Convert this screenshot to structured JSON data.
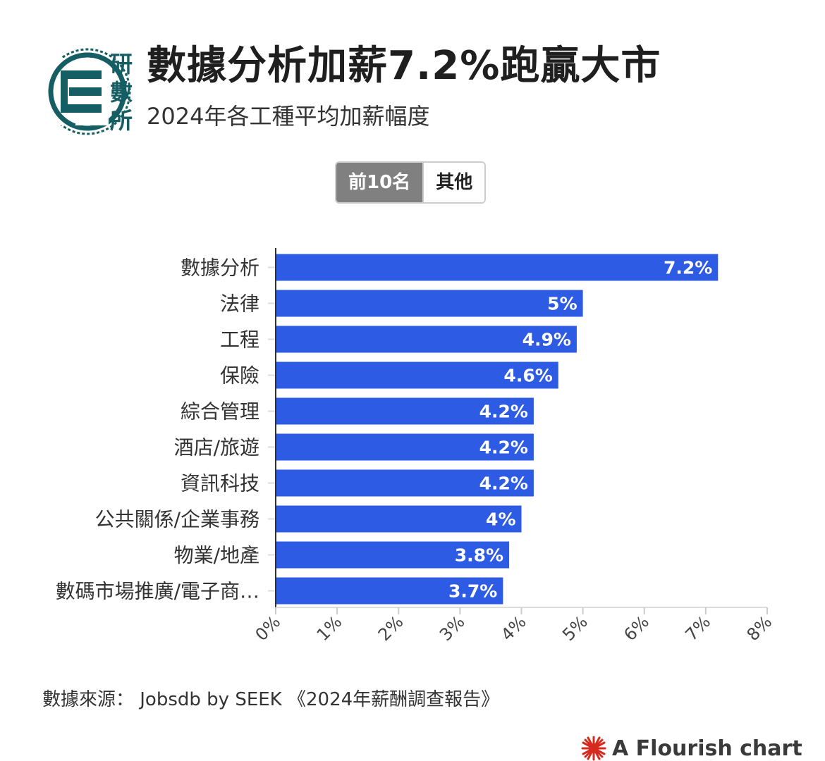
{
  "header": {
    "logo_text": [
      "研",
      "數",
      "所"
    ],
    "title": "數據分析加薪7.2%跑贏大市",
    "subtitle": "2024年各工種平均加薪幅度"
  },
  "tabs": [
    {
      "label": "前10名",
      "active": true
    },
    {
      "label": "其他",
      "active": false
    }
  ],
  "chart_data": {
    "type": "bar",
    "orientation": "horizontal",
    "categories": [
      "數據分析",
      "法律",
      "工程",
      "保險",
      "綜合管理",
      "酒店/旅遊",
      "資訊科技",
      "公共關係/企業事務",
      "物業/地產",
      "數碼市場推廣/電子商…"
    ],
    "values": [
      7.2,
      5,
      4.9,
      4.6,
      4.2,
      4.2,
      4.2,
      4,
      3.8,
      3.7
    ],
    "value_labels": [
      "7.2%",
      "5%",
      "4.9%",
      "4.6%",
      "4.2%",
      "4.2%",
      "4.2%",
      "4%",
      "3.8%",
      "3.7%"
    ],
    "xlim": [
      0,
      8
    ],
    "x_ticks": [
      "0%",
      "1%",
      "2%",
      "3%",
      "4%",
      "5%",
      "6%",
      "7%",
      "8%"
    ],
    "bar_color": "#2d5be3",
    "grid": false
  },
  "footer": {
    "source": "數據來源： Jobsdb by SEEK 《2024年薪酬調查報告》",
    "credit": "A Flourish chart"
  },
  "colors": {
    "brand": "#155e63",
    "bar": "#2d5be3",
    "tab_active": "#808080"
  }
}
